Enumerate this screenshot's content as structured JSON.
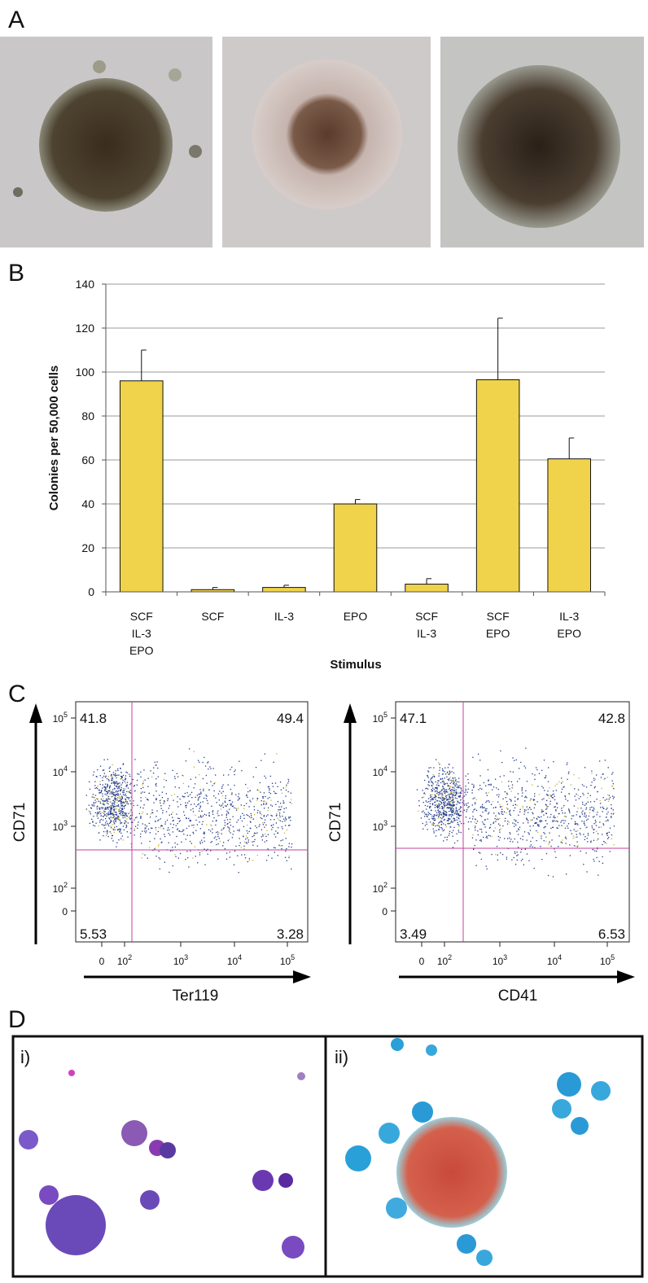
{
  "panel_labels": [
    "A",
    "B",
    "C",
    "D"
  ],
  "chart_data": {
    "type": "bar",
    "x_label": "Stimulus",
    "y_label": "Colonies per 50,000 cells",
    "categories": [
      [
        "SCF",
        "IL-3",
        "EPO"
      ],
      [
        "SCF"
      ],
      [
        "IL-3"
      ],
      [
        "EPO"
      ],
      [
        "SCF",
        "IL-3"
      ],
      [
        "SCF",
        "EPO"
      ],
      [
        "IL-3",
        "EPO"
      ]
    ],
    "values": [
      96,
      1,
      2,
      40,
      3.5,
      96.5,
      60.5
    ],
    "errors": [
      14,
      1,
      1,
      2,
      2.5,
      28,
      9.5
    ],
    "color": "#f0d34b",
    "ylim": [
      0,
      140
    ],
    "yticks": [
      0,
      20,
      40,
      60,
      80,
      100,
      120,
      140
    ],
    "grid": true
  },
  "flow_plots": [
    {
      "y_label": "CD71",
      "x_label": "Ter119",
      "quadrants": [
        "41.8",
        "49.4",
        "5.53",
        "3.28"
      ],
      "yticks": [
        {
          "base": "10",
          "exp": "5"
        },
        {
          "base": "10",
          "exp": "4"
        },
        {
          "base": "10",
          "exp": "3"
        },
        {
          "base": "10",
          "exp": "2"
        },
        {
          "base": "0"
        }
      ],
      "xticks": [
        {
          "base": "0"
        },
        {
          "base": "10",
          "exp": "2"
        },
        {
          "base": "10",
          "exp": "3"
        },
        {
          "base": "10",
          "exp": "4"
        },
        {
          "base": "10",
          "exp": "5"
        }
      ]
    },
    {
      "y_label": "CD71",
      "x_label": "CD41",
      "quadrants": [
        "47.1",
        "42.8",
        "3.49",
        "6.53"
      ],
      "yticks": [
        {
          "base": "10",
          "exp": "5"
        },
        {
          "base": "10",
          "exp": "4"
        },
        {
          "base": "10",
          "exp": "3"
        },
        {
          "base": "10",
          "exp": "2"
        },
        {
          "base": "0"
        }
      ],
      "xticks": [
        {
          "base": "0"
        },
        {
          "base": "10",
          "exp": "2"
        },
        {
          "base": "10",
          "exp": "3"
        },
        {
          "base": "10",
          "exp": "4"
        },
        {
          "base": "10",
          "exp": "5"
        }
      ]
    }
  ],
  "panel_d": {
    "labels": [
      "i)",
      "ii)"
    ]
  }
}
